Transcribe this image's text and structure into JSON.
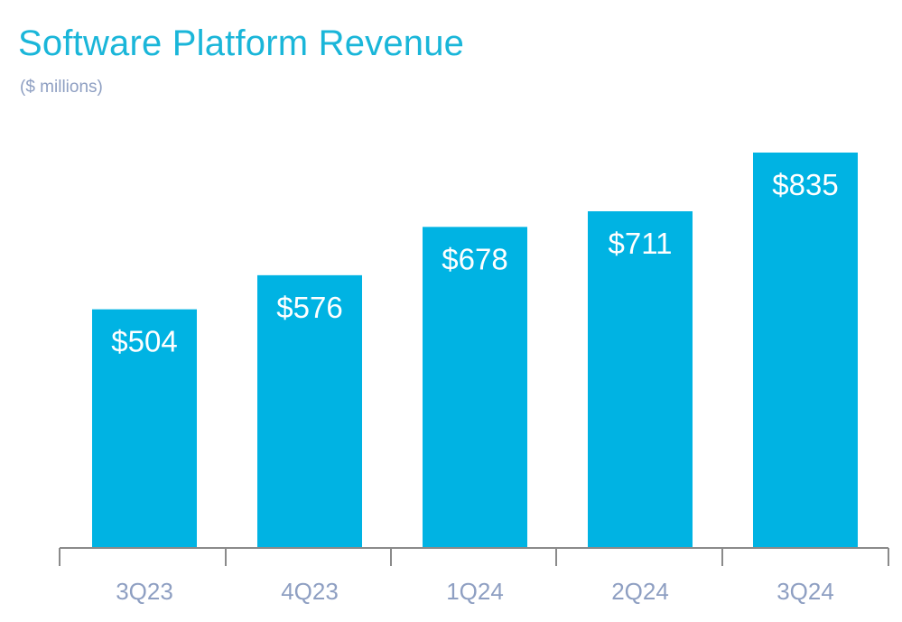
{
  "chart_data": {
    "type": "bar",
    "title": "Software Platform Revenue",
    "subtitle": "($ millions)",
    "xlabel": "",
    "ylabel": "",
    "categories": [
      "3Q23",
      "4Q23",
      "1Q24",
      "2Q24",
      "3Q24"
    ],
    "series": [
      {
        "values": [
          504,
          576,
          678,
          711,
          835
        ],
        "data_labels": [
          "$504",
          "$576",
          "$678",
          "$711",
          "$835"
        ]
      }
    ],
    "ylim": [
      0,
      835
    ],
    "grid": false,
    "legend": "none",
    "colors": {
      "bar": "#00b3e3",
      "bar_label": "#ffffff",
      "title": "#1ab6d9",
      "subtitle": "#8e9fc2",
      "tick_label": "#8e9fc2",
      "axis": "#8a8a8a"
    }
  }
}
